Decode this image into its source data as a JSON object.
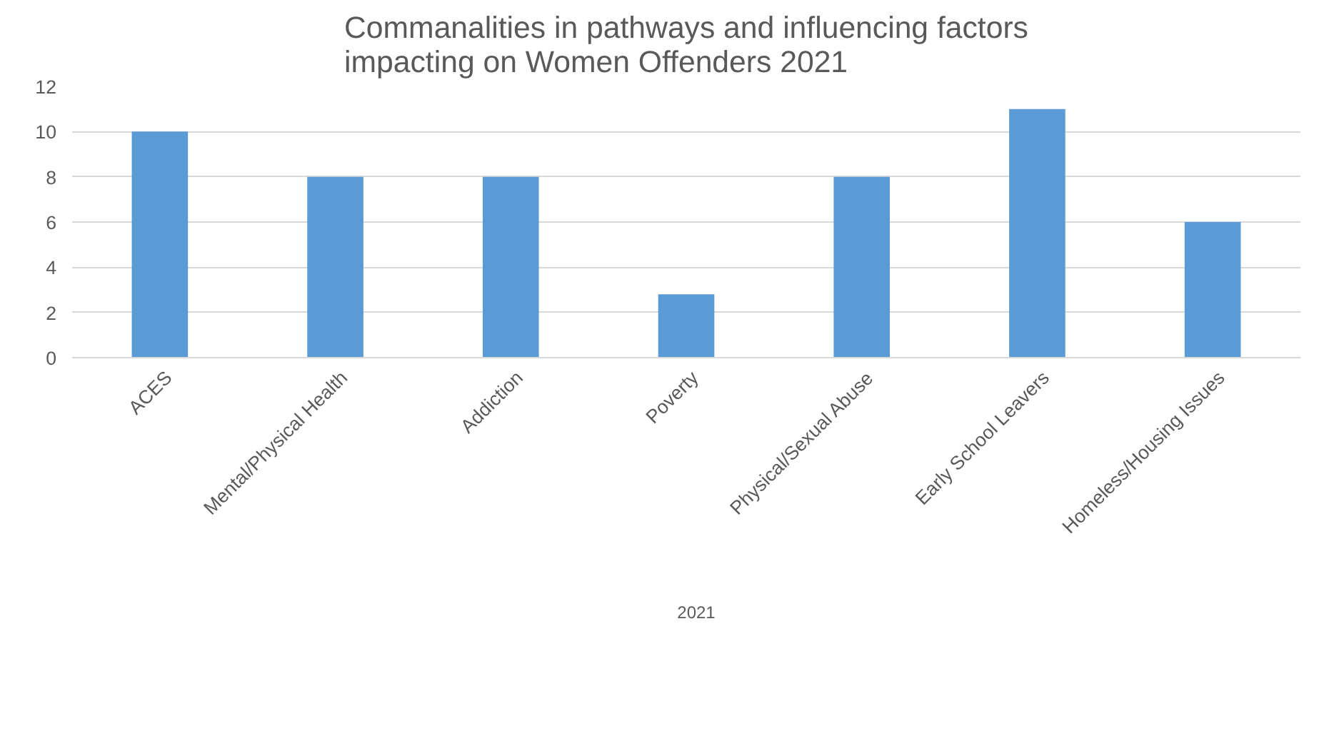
{
  "chart_data": {
    "type": "bar",
    "title": "Commanalities in pathways and influencing factors\nimpacting on Women Offenders 2021",
    "categories": [
      "ACES",
      "Mental/Physical Health",
      "Addiction",
      "Poverty",
      "Physical/Sexual Abuse",
      "Early School Leavers",
      "Homeless/Housing Issues"
    ],
    "series": [
      {
        "name": "2021",
        "color": "#5b9bd5",
        "values": [
          10,
          8,
          8,
          2.8,
          8,
          11,
          6
        ]
      }
    ],
    "ylim": [
      0,
      12
    ],
    "yticks": [
      0,
      2,
      4,
      6,
      8,
      10,
      12
    ],
    "grid": "y",
    "legend": "bottom"
  }
}
